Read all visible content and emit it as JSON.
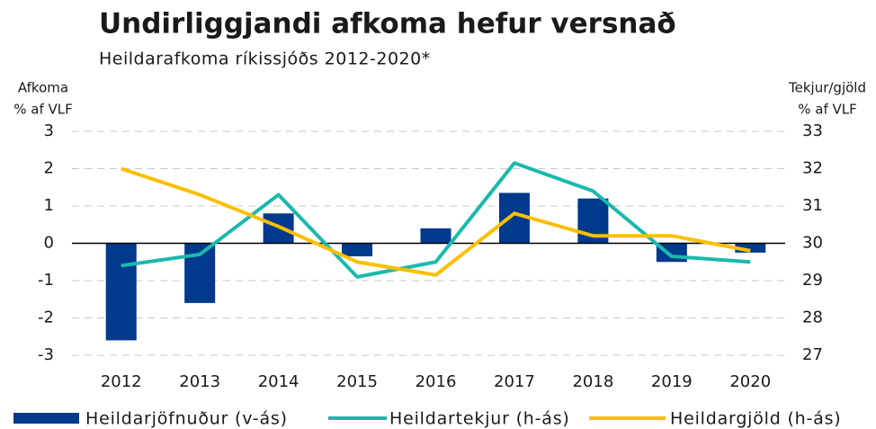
{
  "chart_data": {
    "type": "bar_line",
    "title": "Undirliggjandi afkoma hefur versnað",
    "subtitle": "Heildarafkoma ríkissjóðs 2012-2020*",
    "ylabel": [
      "Afkoma",
      "% af VLF"
    ],
    "y2label": [
      "Tekjur/gjöld",
      "% af VLF"
    ],
    "categories": [
      "2012",
      "2013",
      "2014",
      "2015",
      "2016",
      "2017",
      "2018",
      "2019",
      "2020"
    ],
    "series": [
      {
        "name": "Heildarjöfnuður (v-ás)",
        "type": "bar",
        "color": "#003a8c",
        "values": [
          -2.6,
          -1.6,
          0.8,
          -0.35,
          0.4,
          1.35,
          1.2,
          -0.5,
          -0.25
        ]
      },
      {
        "name": "Heildartekjur (h-ás)",
        "type": "line",
        "axis": "y2",
        "color": "#1ab9ad",
        "values": [
          29.4,
          29.7,
          31.3,
          29.1,
          29.5,
          32.15,
          31.4,
          29.65,
          29.5
        ]
      },
      {
        "name": "Heildargjöld (h-ás)",
        "type": "line",
        "axis": "y2",
        "color": "#fbbf00",
        "values": [
          32.0,
          31.3,
          30.45,
          29.5,
          29.15,
          30.8,
          30.2,
          30.2,
          29.8
        ]
      }
    ],
    "ylim": [
      -3,
      3
    ],
    "yticks": [
      -3,
      -2,
      -1,
      0,
      1,
      2,
      3
    ],
    "y2lim": [
      27,
      33
    ],
    "y2ticks": [
      27,
      28,
      29,
      30,
      31,
      32,
      33
    ],
    "grid": true
  }
}
